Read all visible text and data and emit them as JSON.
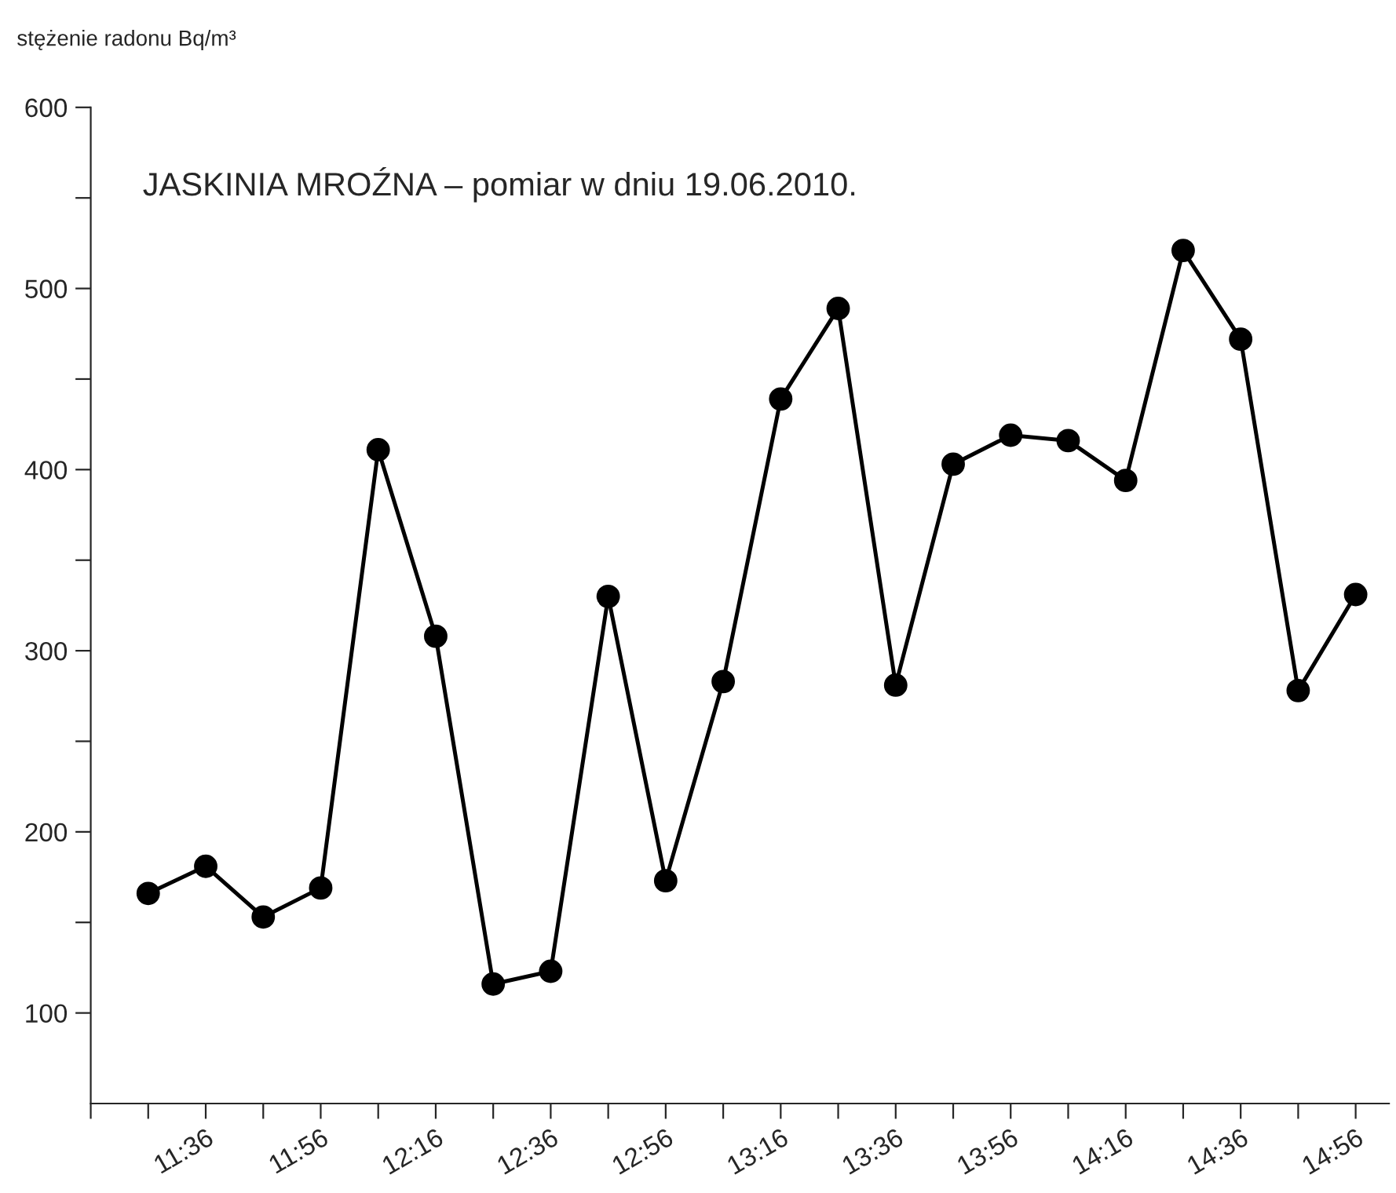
{
  "chart_data": {
    "type": "line",
    "title": "JASKINIA MROŹNA – pomiar w dniu 19.06.2010.",
    "ylabel": "stężenie radonu Bq/m³",
    "x": [
      11.4333,
      11.6,
      11.7667,
      11.9333,
      12.1,
      12.2667,
      12.4333,
      12.6,
      12.7667,
      12.9333,
      13.1,
      13.2667,
      13.4333,
      13.6,
      13.7667,
      13.9333,
      14.1,
      14.2667,
      14.4333,
      14.6,
      14.7667,
      14.9333
    ],
    "series": [
      {
        "color": "#000000",
        "values": [
          166,
          181,
          153,
          169,
          411,
          308,
          116,
          123,
          330,
          173,
          283,
          439,
          489,
          281,
          403,
          419,
          416,
          394,
          521,
          472,
          278,
          331
        ]
      }
    ],
    "marker": "circle",
    "line_style": "solid",
    "grid": false,
    "legend": false,
    "xlim": [
      11.2667,
      15.03
    ],
    "xticks": [
      {
        "value": 11.2667,
        "label": null
      },
      {
        "value": 11.4333,
        "label": null
      },
      {
        "value": 11.6,
        "label": "11:36"
      },
      {
        "value": 11.7667,
        "label": null
      },
      {
        "value": 11.9333,
        "label": "11:56"
      },
      {
        "value": 12.1,
        "label": null
      },
      {
        "value": 12.2667,
        "label": "12:16"
      },
      {
        "value": 12.4333,
        "label": null
      },
      {
        "value": 12.6,
        "label": "12:36"
      },
      {
        "value": 12.7667,
        "label": null
      },
      {
        "value": 12.9333,
        "label": "12:56"
      },
      {
        "value": 13.1,
        "label": null
      },
      {
        "value": 13.2667,
        "label": "13:16"
      },
      {
        "value": 13.4333,
        "label": null
      },
      {
        "value": 13.6,
        "label": "13:36"
      },
      {
        "value": 13.7667,
        "label": null
      },
      {
        "value": 13.9333,
        "label": "13:56"
      },
      {
        "value": 14.1,
        "label": null
      },
      {
        "value": 14.2667,
        "label": "14:16"
      },
      {
        "value": 14.4333,
        "label": null
      },
      {
        "value": 14.6,
        "label": "14:36"
      },
      {
        "value": 14.7667,
        "label": null
      },
      {
        "value": 14.9333,
        "label": "14:56"
      }
    ],
    "ylim": [
      50,
      600
    ],
    "yticks": [
      100,
      {
        "value": 150,
        "label": null
      },
      200,
      {
        "value": 250,
        "label": null
      },
      300,
      {
        "value": 350,
        "label": null
      },
      400,
      {
        "value": 450,
        "label": null
      },
      500,
      {
        "value": 550,
        "label": null
      },
      600
    ]
  }
}
